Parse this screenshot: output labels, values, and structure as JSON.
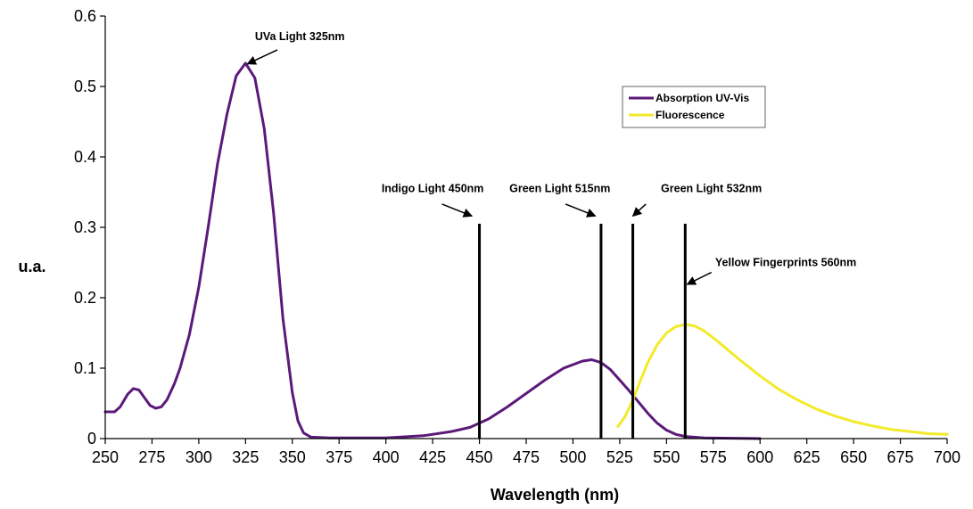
{
  "chart_data": {
    "type": "line",
    "xlabel": "Wavelength (nm)",
    "ylabel": "u.a.",
    "xlim": [
      250,
      700
    ],
    "ylim": [
      0,
      0.6
    ],
    "x_ticks": [
      250,
      275,
      300,
      325,
      350,
      375,
      400,
      425,
      450,
      475,
      500,
      525,
      550,
      575,
      600,
      625,
      650,
      675,
      700
    ],
    "y_ticks": [
      0,
      0.1,
      0.2,
      0.3,
      0.4,
      0.5,
      0.6
    ],
    "x_tick_labels": [
      "250",
      "275",
      "300",
      "325",
      "350",
      "375",
      "400",
      "425",
      "450",
      "475",
      "500",
      "525",
      "550",
      "575",
      "600",
      "625",
      "650",
      "675",
      "700"
    ],
    "y_tick_labels": [
      "0",
      "0.1",
      "0.2",
      "0.3",
      "0.4",
      "0.5",
      "0.6"
    ],
    "grid": false,
    "legend_position": "top-right",
    "series": [
      {
        "name": "Absorption UV-Vis",
        "color": "#5b1a7a",
        "points": [
          [
            250,
            0.038
          ],
          [
            255,
            0.038
          ],
          [
            258,
            0.045
          ],
          [
            262,
            0.063
          ],
          [
            265,
            0.071
          ],
          [
            268,
            0.069
          ],
          [
            271,
            0.058
          ],
          [
            274,
            0.047
          ],
          [
            277,
            0.043
          ],
          [
            280,
            0.045
          ],
          [
            283,
            0.055
          ],
          [
            287,
            0.078
          ],
          [
            290,
            0.1
          ],
          [
            295,
            0.148
          ],
          [
            300,
            0.215
          ],
          [
            305,
            0.3
          ],
          [
            310,
            0.39
          ],
          [
            315,
            0.46
          ],
          [
            320,
            0.515
          ],
          [
            325,
            0.533
          ],
          [
            330,
            0.512
          ],
          [
            335,
            0.44
          ],
          [
            340,
            0.32
          ],
          [
            345,
            0.17
          ],
          [
            350,
            0.065
          ],
          [
            353,
            0.025
          ],
          [
            356,
            0.008
          ],
          [
            360,
            0.002
          ],
          [
            370,
            0.001
          ],
          [
            400,
            0.001
          ],
          [
            420,
            0.004
          ],
          [
            435,
            0.01
          ],
          [
            445,
            0.016
          ],
          [
            455,
            0.028
          ],
          [
            465,
            0.045
          ],
          [
            475,
            0.064
          ],
          [
            485,
            0.083
          ],
          [
            495,
            0.1
          ],
          [
            505,
            0.11
          ],
          [
            510,
            0.112
          ],
          [
            515,
            0.108
          ],
          [
            520,
            0.098
          ],
          [
            525,
            0.083
          ],
          [
            530,
            0.068
          ],
          [
            535,
            0.052
          ],
          [
            540,
            0.036
          ],
          [
            545,
            0.022
          ],
          [
            550,
            0.012
          ],
          [
            555,
            0.006
          ],
          [
            560,
            0.003
          ],
          [
            570,
            0.001
          ],
          [
            600,
            0.0
          ]
        ]
      },
      {
        "name": "Fluorescence",
        "color": "#f2ea2a",
        "points": [
          [
            524,
            0.017
          ],
          [
            528,
            0.032
          ],
          [
            532,
            0.055
          ],
          [
            536,
            0.082
          ],
          [
            540,
            0.108
          ],
          [
            545,
            0.133
          ],
          [
            550,
            0.15
          ],
          [
            555,
            0.159
          ],
          [
            560,
            0.162
          ],
          [
            565,
            0.16
          ],
          [
            570,
            0.153
          ],
          [
            575,
            0.143
          ],
          [
            580,
            0.132
          ],
          [
            590,
            0.11
          ],
          [
            600,
            0.089
          ],
          [
            610,
            0.07
          ],
          [
            620,
            0.055
          ],
          [
            630,
            0.042
          ],
          [
            640,
            0.032
          ],
          [
            650,
            0.024
          ],
          [
            660,
            0.018
          ],
          [
            670,
            0.013
          ],
          [
            680,
            0.01
          ],
          [
            690,
            0.007
          ],
          [
            700,
            0.006
          ]
        ]
      }
    ],
    "vertical_lines": [
      {
        "x": 450,
        "y_top": 0.305
      },
      {
        "x": 515,
        "y_top": 0.305
      },
      {
        "x": 532,
        "y_top": 0.305
      },
      {
        "x": 560,
        "y_top": 0.305
      }
    ],
    "annotations": [
      {
        "text": "UVa Light 325nm",
        "tx": 330,
        "ty": 0.566,
        "ax1": 342,
        "ay1": 0.552,
        "ax2": 326,
        "ay2": 0.532,
        "anchor": "start"
      },
      {
        "text": "Indigo Light 450nm",
        "tx": 425,
        "ty": 0.35,
        "ax1": 430,
        "ay1": 0.333,
        "ax2": 446,
        "ay2": 0.316,
        "anchor": "middle"
      },
      {
        "text": "Green Light 515nm",
        "tx": 493,
        "ty": 0.35,
        "ax1": 496,
        "ay1": 0.333,
        "ax2": 512,
        "ay2": 0.316,
        "anchor": "middle"
      },
      {
        "text": "Green Light 532nm",
        "tx": 547,
        "ty": 0.35,
        "ax1": 539,
        "ay1": 0.333,
        "ax2": 532,
        "ay2": 0.316,
        "anchor": "start"
      },
      {
        "text": "Yellow Fingerprints 560nm",
        "tx": 576,
        "ty": 0.245,
        "ax1": 574,
        "ay1": 0.236,
        "ax2": 561,
        "ay2": 0.219,
        "anchor": "start"
      }
    ]
  }
}
